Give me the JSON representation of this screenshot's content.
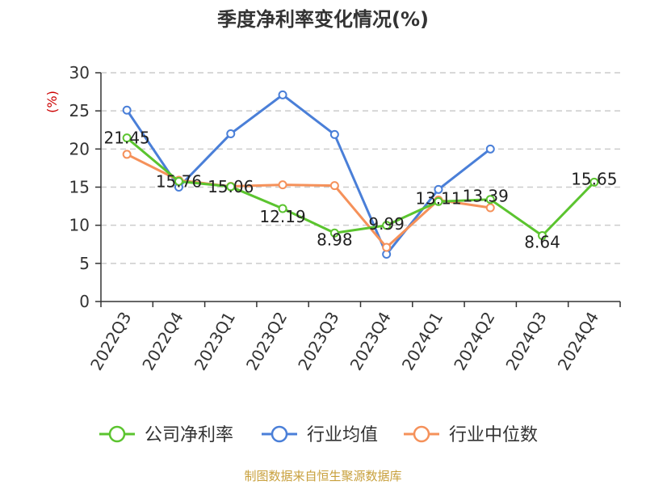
{
  "chart_data": {
    "type": "line",
    "title": "季度净利率变化情况(%)",
    "ylabel": "(%)",
    "xlabel": "",
    "ylim": [
      0,
      30
    ],
    "yticks": [
      0,
      5,
      10,
      15,
      20,
      25,
      30
    ],
    "grid": true,
    "legend_position": "bottom",
    "categories": [
      "2022Q3",
      "2022Q4",
      "2023Q1",
      "2023Q2",
      "2023Q3",
      "2023Q4",
      "2024Q1",
      "2024Q2",
      "2024Q3",
      "2024Q4"
    ],
    "series": [
      {
        "name": "公司净利率",
        "color": "#5bc42f",
        "values": [
          21.45,
          15.76,
          15.06,
          12.19,
          8.98,
          9.99,
          13.11,
          13.39,
          8.64,
          15.65
        ],
        "labels": [
          "21.45",
          "15.76",
          "15.06",
          "12.19",
          "8.98",
          "9.99",
          "13.11",
          "13.39",
          "8.64",
          "15.65"
        ]
      },
      {
        "name": "行业均值",
        "color": "#4a7fd8",
        "values": [
          25.1,
          15.0,
          22.0,
          27.1,
          21.9,
          6.2,
          14.7,
          20.0,
          null,
          null
        ]
      },
      {
        "name": "行业中位数",
        "color": "#f5915a",
        "values": [
          19.3,
          15.9,
          15.1,
          15.3,
          15.2,
          7.1,
          13.3,
          12.3,
          null,
          null
        ]
      }
    ],
    "source": "制图数据来自恒生聚源数据库"
  },
  "colors": {
    "unit_label": "#cc0000",
    "source_text": "#c8a03c",
    "axis": "#333333",
    "grid": "#cccccc"
  }
}
